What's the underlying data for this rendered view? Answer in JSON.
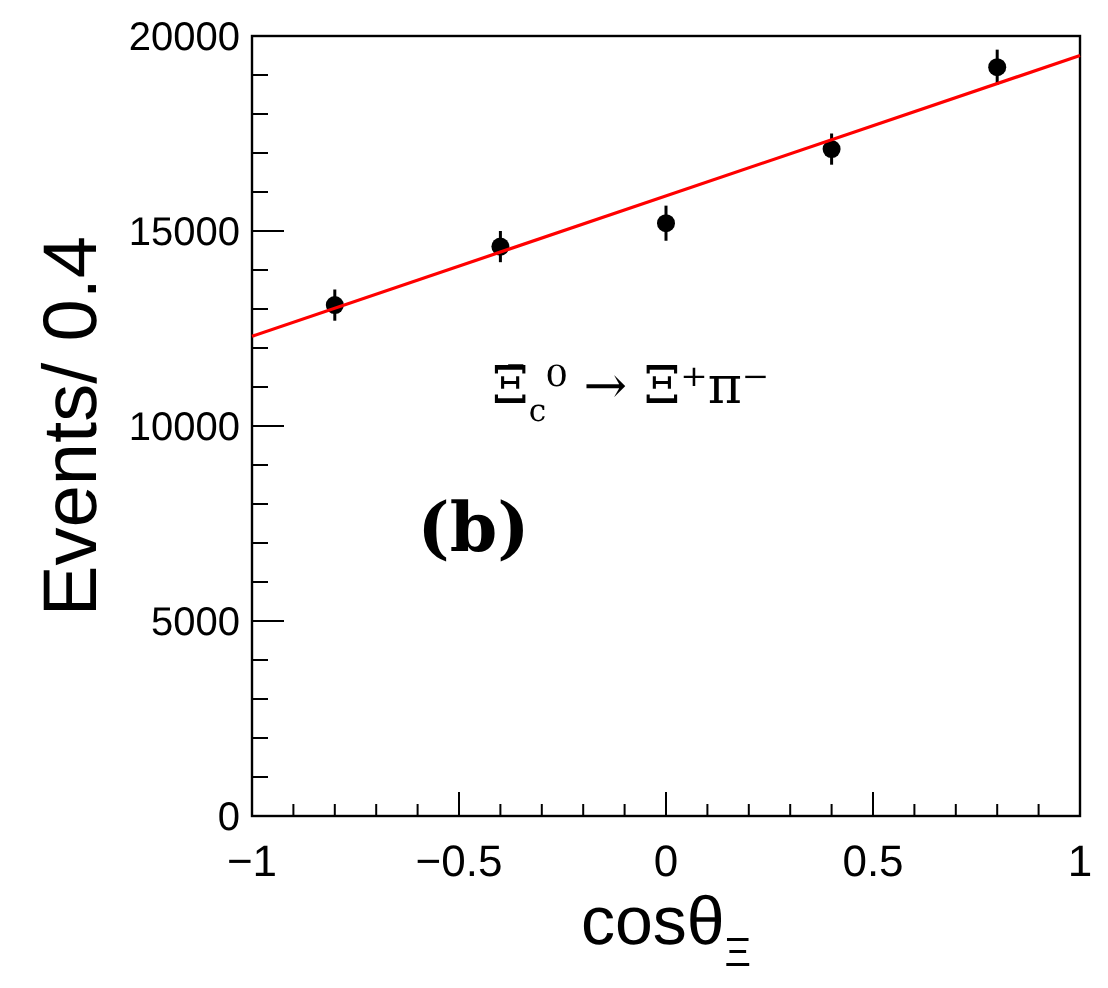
{
  "chart_data": {
    "type": "scatter",
    "xlabel": "cosθ$_{Ξ}$",
    "ylabel": "Events/ 0.4",
    "xlim": [
      -1,
      1
    ],
    "ylim": [
      0,
      20000
    ],
    "xticks": [
      {
        "value": -1,
        "label": "−1"
      },
      {
        "value": -0.9,
        "label": null
      },
      {
        "value": -0.8,
        "label": null
      },
      {
        "value": -0.7,
        "label": null
      },
      {
        "value": -0.6,
        "label": null
      },
      {
        "value": -0.5,
        "label": "−0.5"
      },
      {
        "value": -0.4,
        "label": null
      },
      {
        "value": -0.3,
        "label": null
      },
      {
        "value": -0.2,
        "label": null
      },
      {
        "value": -0.1,
        "label": null
      },
      0,
      {
        "value": 0.1,
        "label": null
      },
      {
        "value": 0.2,
        "label": null
      },
      {
        "value": 0.3,
        "label": null
      },
      {
        "value": 0.4,
        "label": null
      },
      0.5,
      {
        "value": 0.6,
        "label": null
      },
      {
        "value": 0.7,
        "label": null
      },
      {
        "value": 0.8,
        "label": null
      },
      {
        "value": 0.9,
        "label": null
      },
      1
    ],
    "yticks": [
      0,
      {
        "value": 1000,
        "label": null
      },
      {
        "value": 2000,
        "label": null
      },
      {
        "value": 3000,
        "label": null
      },
      {
        "value": 4000,
        "label": null
      },
      5000,
      {
        "value": 6000,
        "label": null
      },
      {
        "value": 7000,
        "label": null
      },
      {
        "value": 8000,
        "label": null
      },
      {
        "value": 9000,
        "label": null
      },
      10000,
      {
        "value": 11000,
        "label": null
      },
      {
        "value": 12000,
        "label": null
      },
      {
        "value": 13000,
        "label": null
      },
      {
        "value": 14000,
        "label": null
      },
      15000,
      {
        "value": 16000,
        "label": null
      },
      {
        "value": 17000,
        "label": null
      },
      {
        "value": 18000,
        "label": null
      },
      {
        "value": 19000,
        "label": null
      },
      20000
    ],
    "grid": false,
    "series": [
      {
        "marker": "circle",
        "color": "#000000",
        "x": [
          -0.8,
          -0.4,
          0,
          0.4,
          0.8
        ],
        "values": [
          13100,
          14600,
          15200,
          17100,
          19200
        ],
        "errors": [
          400,
          400,
          450,
          400,
          450
        ]
      },
      {
        "type": "line",
        "color": "#ff0000",
        "x": [
          -1,
          1
        ],
        "values": [
          12300,
          19500
        ],
        "line_style": "solid",
        "marker": "none"
      }
    ],
    "annotations": [
      "Ξ̄$_{c}$⁰ → Ξ⁺π⁻",
      "(b)"
    ]
  }
}
